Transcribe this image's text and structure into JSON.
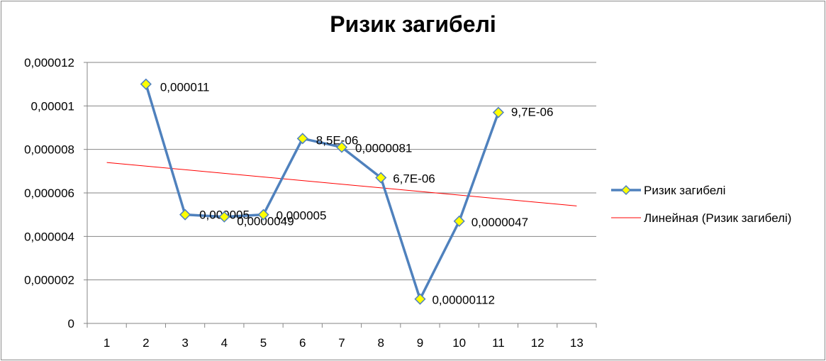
{
  "chart_data": {
    "type": "line",
    "title": "Ризик загибелі",
    "xlabel": "",
    "ylabel": "",
    "categories": [
      "1",
      "2",
      "3",
      "4",
      "5",
      "6",
      "7",
      "8",
      "9",
      "10",
      "11",
      "12",
      "13"
    ],
    "xlim": [
      0.5,
      13.5
    ],
    "ylim": [
      0,
      1.2e-05
    ],
    "y_ticks": [
      {
        "value": 1.2e-05,
        "label": "0,000012"
      },
      {
        "value": 1e-05,
        "label": "0,00001"
      },
      {
        "value": 8e-06,
        "label": "0,000008"
      },
      {
        "value": 6e-06,
        "label": "0,000006"
      },
      {
        "value": 4e-06,
        "label": "0,000004"
      },
      {
        "value": 2e-06,
        "label": "0,000002"
      },
      {
        "value": 0,
        "label": "0"
      }
    ],
    "grid": true,
    "legend_position": "right",
    "series": [
      {
        "name": "Ризик загибелі",
        "color": "#4f81bd",
        "marker": "diamond",
        "marker_color": "#ffff00",
        "points": [
          {
            "x": 2,
            "y": 1.1e-05,
            "label": "0,000011"
          },
          {
            "x": 3,
            "y": 5e-06,
            "label": "0,000005"
          },
          {
            "x": 4,
            "y": 4.9e-06,
            "label": "0,0000049"
          },
          {
            "x": 5,
            "y": 5e-06,
            "label": "0,000005"
          },
          {
            "x": 6,
            "y": 8.5e-06,
            "label": "8,5E-06"
          },
          {
            "x": 7,
            "y": 8.1e-06,
            "label": "0,0000081"
          },
          {
            "x": 8,
            "y": 6.7e-06,
            "label": "6,7E-06"
          },
          {
            "x": 9,
            "y": 1.12e-06,
            "label": "0,00000112"
          },
          {
            "x": 10,
            "y": 4.7e-06,
            "label": "0,0000047"
          },
          {
            "x": 11,
            "y": 9.7e-06,
            "label": "9,7E-06"
          }
        ]
      }
    ],
    "trendline": {
      "name": "Линейная (Ризик загибелі)",
      "type": "linear",
      "color": "#ff0000",
      "x_range": [
        1,
        13
      ],
      "y_start": 7.4e-06,
      "y_end": 5.4e-06
    }
  }
}
